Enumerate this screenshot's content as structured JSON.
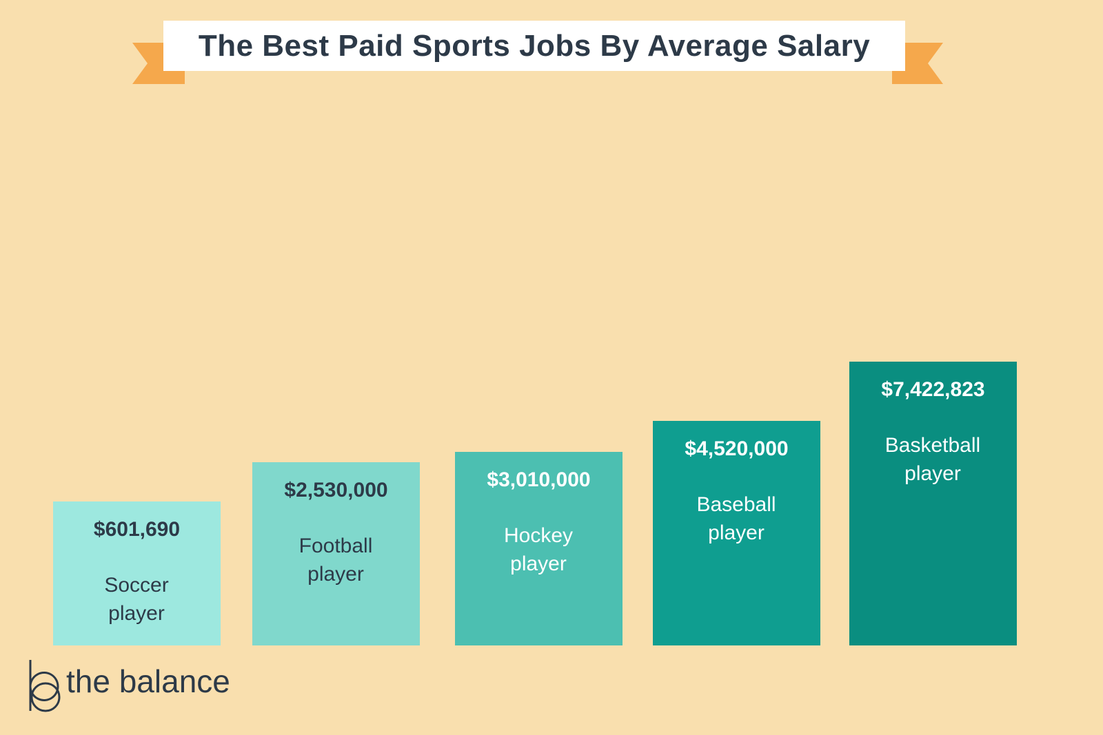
{
  "chart_data": {
    "type": "bar",
    "title": "The Best Paid Sports Jobs By Average Salary",
    "categories": [
      "Soccer player",
      "Football player",
      "Hockey player",
      "Baseball player",
      "Basketball player"
    ],
    "values": [
      601690,
      2530000,
      3010000,
      4520000,
      7422823
    ],
    "value_labels": [
      "$601,690",
      "$2,530,000",
      "$3,010,000",
      "$4,520,000",
      "$7,422,823"
    ],
    "colors": [
      "#9de8df",
      "#80d8cc",
      "#4cbfb1",
      "#0f9e90",
      "#0a8e80"
    ]
  },
  "brand": "the balance"
}
